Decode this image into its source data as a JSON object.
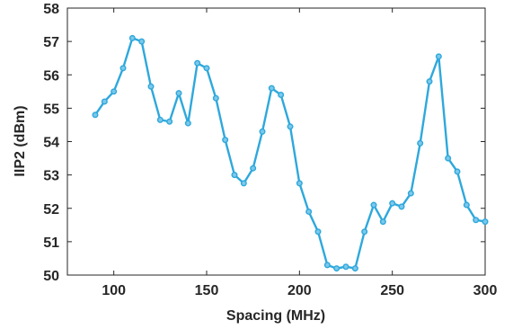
{
  "chart_data": {
    "type": "line",
    "xlabel": "Spacing (MHz)",
    "ylabel": "IIP2 (dBm)",
    "xlim": [
      75,
      300
    ],
    "ylim": [
      50,
      58
    ],
    "xticks": [
      100,
      150,
      200,
      250,
      300
    ],
    "yticks": [
      50,
      51,
      52,
      53,
      54,
      55,
      56,
      57,
      58
    ],
    "grid": false,
    "legend": "none",
    "series": [
      {
        "color": "#2ea8dc",
        "x": [
          90,
          95,
          100,
          105,
          110,
          115,
          120,
          125,
          130,
          135,
          140,
          145,
          150,
          155,
          160,
          165,
          170,
          175,
          180,
          185,
          190,
          195,
          200,
          205,
          210,
          215,
          220,
          225,
          230,
          235,
          240,
          245,
          250,
          255,
          260,
          265,
          270,
          275,
          280,
          285,
          290,
          295,
          300
        ],
        "y": [
          54.8,
          55.2,
          55.5,
          56.2,
          57.1,
          57.0,
          55.65,
          54.65,
          54.6,
          55.45,
          54.55,
          56.35,
          56.2,
          55.3,
          54.05,
          53.0,
          52.75,
          53.2,
          54.3,
          55.6,
          55.4,
          54.45,
          52.75,
          51.9,
          51.3,
          50.3,
          50.2,
          50.25,
          50.2,
          51.3,
          52.1,
          51.6,
          52.15,
          52.05,
          52.45,
          53.95,
          55.8,
          56.55,
          53.5,
          53.1,
          52.1,
          51.65,
          51.6
        ]
      }
    ]
  }
}
